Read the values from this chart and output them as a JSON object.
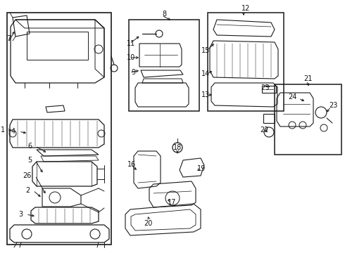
{
  "bg_color": "#ffffff",
  "fig_width": 4.9,
  "fig_height": 3.6,
  "dpi": 100,
  "line_color": "#1a1a1a",
  "text_color": "#111111",
  "label_fontsize": 7.0,
  "boxes": {
    "main": [
      10,
      18,
      148,
      330
    ],
    "b8": [
      183,
      28,
      100,
      130
    ],
    "b12": [
      295,
      18,
      108,
      140
    ],
    "b21": [
      390,
      120,
      95,
      100
    ]
  },
  "labels": {
    "1": [
      7,
      185,
      "right"
    ],
    "2": [
      42,
      271,
      "right"
    ],
    "3": [
      32,
      305,
      "right"
    ],
    "4": [
      22,
      187,
      "right"
    ],
    "5": [
      45,
      228,
      "right"
    ],
    "6": [
      45,
      208,
      "right"
    ],
    "7": [
      12,
      55,
      "center"
    ],
    "8": [
      233,
      20,
      "center"
    ],
    "9": [
      192,
      103,
      "right"
    ],
    "10": [
      192,
      82,
      "right"
    ],
    "11": [
      192,
      62,
      "right"
    ],
    "12": [
      349,
      12,
      "center"
    ],
    "13": [
      298,
      135,
      "right"
    ],
    "14": [
      298,
      105,
      "right"
    ],
    "15": [
      298,
      72,
      "right"
    ],
    "16": [
      193,
      234,
      "right"
    ],
    "17": [
      238,
      288,
      "left"
    ],
    "18": [
      252,
      210,
      "center"
    ],
    "19": [
      280,
      240,
      "left"
    ],
    "20": [
      210,
      318,
      "center"
    ],
    "21": [
      437,
      112,
      "center"
    ],
    "22": [
      375,
      185,
      "center"
    ],
    "23": [
      480,
      150,
      "right"
    ],
    "24": [
      422,
      138,
      "right"
    ],
    "25": [
      376,
      125,
      "center"
    ],
    "26": [
      45,
      250,
      "right"
    ]
  },
  "leader_lines": [
    [
      1,
      12,
      185,
      18,
      185
    ],
    [
      2,
      47,
      271,
      58,
      271
    ],
    [
      3,
      37,
      305,
      50,
      305
    ],
    [
      4,
      27,
      187,
      40,
      187
    ],
    [
      5,
      50,
      228,
      65,
      228
    ],
    [
      6,
      50,
      208,
      70,
      208
    ],
    [
      7,
      12,
      60,
      20,
      60
    ],
    [
      9,
      182,
      103,
      196,
      100
    ],
    [
      10,
      182,
      82,
      196,
      82
    ],
    [
      11,
      182,
      62,
      200,
      62
    ],
    [
      13,
      288,
      135,
      305,
      130
    ],
    [
      14,
      288,
      105,
      305,
      105
    ],
    [
      15,
      288,
      72,
      308,
      72
    ],
    [
      16,
      183,
      234,
      200,
      234
    ],
    [
      17,
      244,
      286,
      244,
      278
    ],
    [
      18,
      252,
      216,
      252,
      222
    ],
    [
      19,
      285,
      240,
      278,
      240
    ],
    [
      20,
      210,
      313,
      210,
      303
    ],
    [
      22,
      376,
      185,
      385,
      180
    ],
    [
      23,
      470,
      148,
      462,
      155
    ],
    [
      24,
      427,
      138,
      435,
      145
    ],
    [
      25,
      376,
      122,
      385,
      128
    ],
    [
      26,
      50,
      250,
      65,
      250
    ]
  ]
}
